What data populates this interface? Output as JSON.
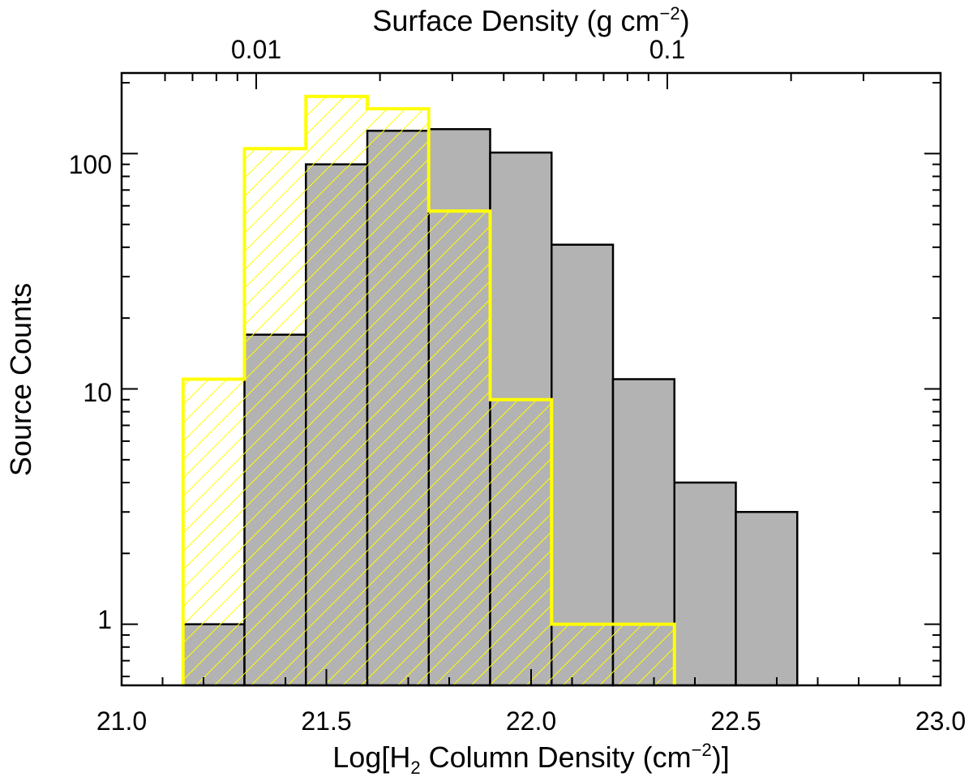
{
  "chart_data": {
    "type": "bar",
    "title_top_axis": {
      "base": "Surface Density (g cm",
      "sup": "−2",
      "end": ")"
    },
    "xlabel": {
      "base": "Log[H",
      "sub": "2",
      "mid": " Column Density (cm",
      "sup": "−2",
      "end": ")]"
    },
    "ylabel": "Source Counts",
    "xlim": [
      21.0,
      23.0
    ],
    "ylim": [
      0.55,
      220
    ],
    "yscale": "log",
    "x_ticks": [
      "21.0",
      "21.5",
      "22.0",
      "22.5",
      "23.0"
    ],
    "y_ticks": [
      "1",
      "10",
      "100"
    ],
    "top_axis_ticks": [
      "0.01",
      "0.1"
    ],
    "series": [
      {
        "name": "gray",
        "style": "filled",
        "color": "#b3b3b3",
        "edge_color": "#000000",
        "bins": [
          {
            "left": 21.15,
            "right": 21.3,
            "count": 1
          },
          {
            "left": 21.3,
            "right": 21.45,
            "count": 17
          },
          {
            "left": 21.45,
            "right": 21.6,
            "count": 90
          },
          {
            "left": 21.6,
            "right": 21.75,
            "count": 125
          },
          {
            "left": 21.75,
            "right": 21.9,
            "count": 127
          },
          {
            "left": 21.9,
            "right": 22.05,
            "count": 101
          },
          {
            "left": 22.05,
            "right": 22.2,
            "count": 41
          },
          {
            "left": 22.2,
            "right": 22.35,
            "count": 11
          },
          {
            "left": 22.35,
            "right": 22.5,
            "count": 4
          },
          {
            "left": 22.5,
            "right": 22.65,
            "count": 3
          }
        ]
      },
      {
        "name": "yellow",
        "style": "hatched",
        "color": "#ffff00",
        "bins": [
          {
            "left": 21.15,
            "right": 21.3,
            "count": 11
          },
          {
            "left": 21.3,
            "right": 21.45,
            "count": 105
          },
          {
            "left": 21.45,
            "right": 21.6,
            "count": 175
          },
          {
            "left": 21.6,
            "right": 21.75,
            "count": 155
          },
          {
            "left": 21.75,
            "right": 21.9,
            "count": 57
          },
          {
            "left": 21.9,
            "right": 22.05,
            "count": 9
          },
          {
            "left": 22.05,
            "right": 22.2,
            "count": 1
          },
          {
            "left": 22.2,
            "right": 22.35,
            "count": 1
          }
        ]
      }
    ]
  }
}
